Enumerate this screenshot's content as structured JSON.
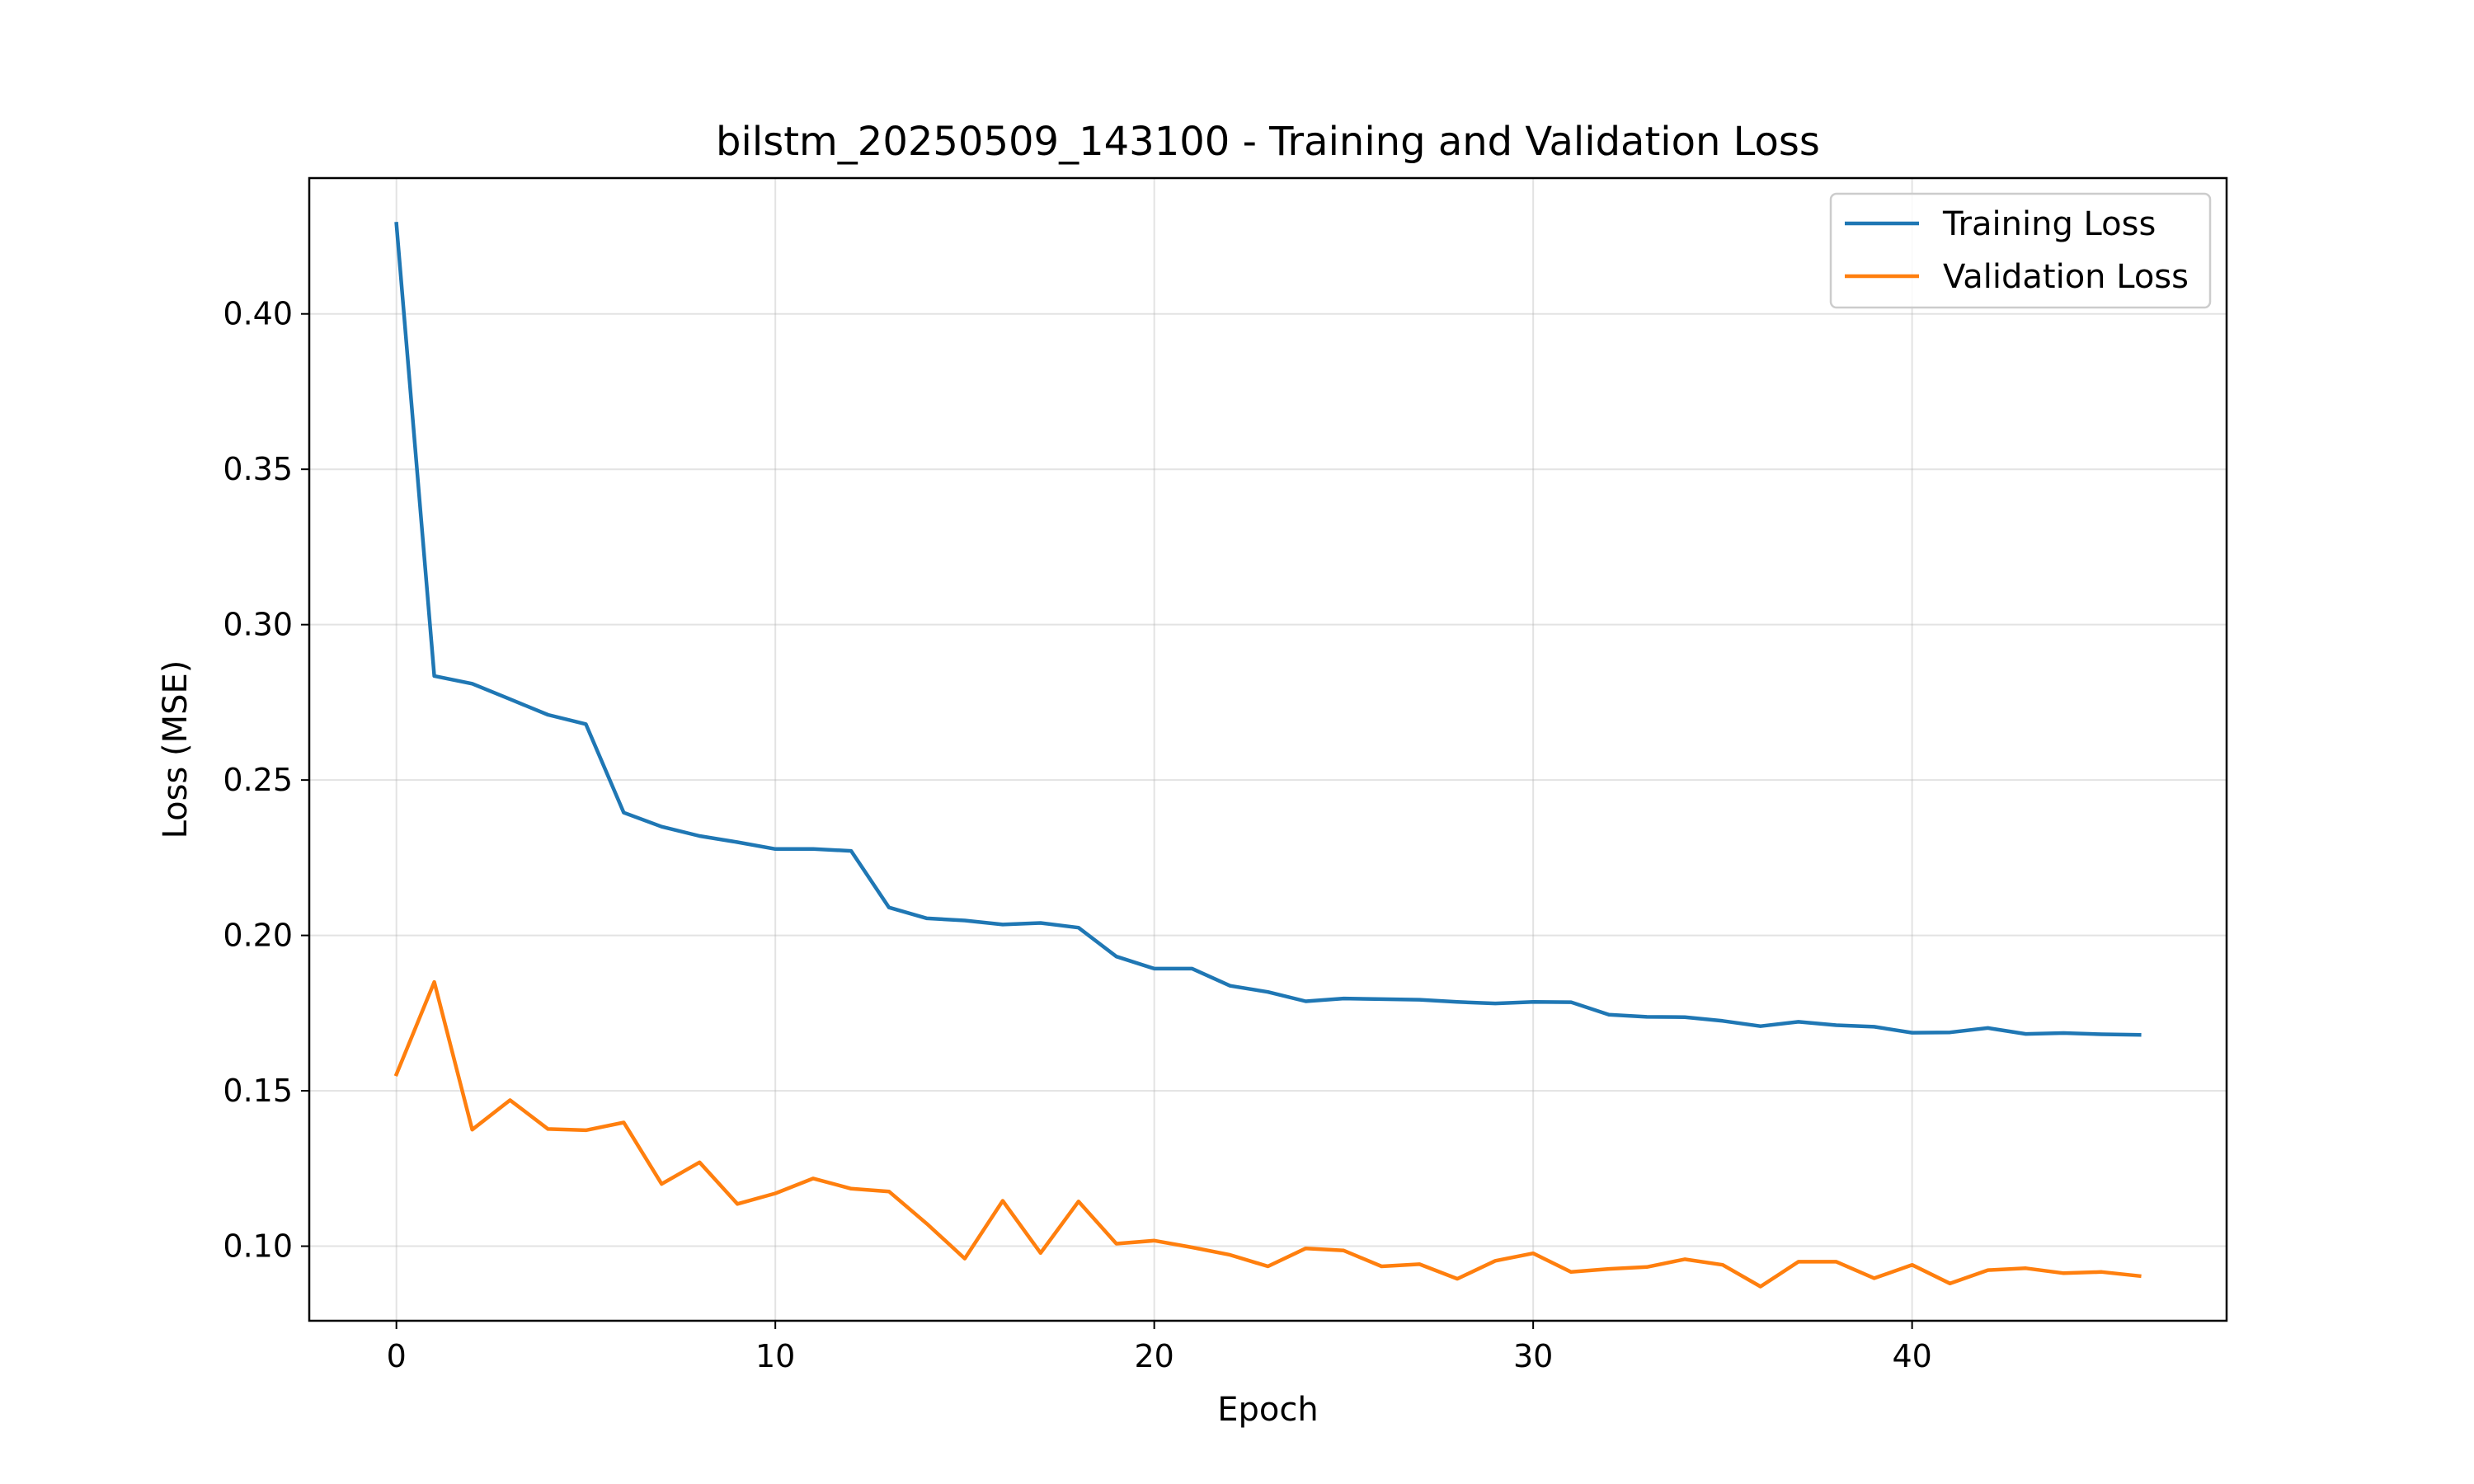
{
  "chart_data": {
    "type": "line",
    "title": "bilstm_20250509_143100 - Training and Validation Loss",
    "xlabel": "Epoch",
    "ylabel": "Loss (MSE)",
    "xlim": [
      -2.3,
      48.3
    ],
    "ylim": [
      0.076,
      0.4437
    ],
    "xticks": [
      0,
      10,
      20,
      30,
      40
    ],
    "yticks": [
      0.1,
      0.15,
      0.2,
      0.25,
      0.3,
      0.35,
      0.4
    ],
    "grid": true,
    "legend_position": "top-right",
    "x": [
      0,
      1,
      2,
      3,
      4,
      5,
      6,
      7,
      8,
      9,
      10,
      11,
      12,
      13,
      14,
      15,
      16,
      17,
      18,
      19,
      20,
      21,
      22,
      23,
      24,
      25,
      26,
      27,
      28,
      29,
      30,
      31,
      32,
      33,
      34,
      35,
      36,
      37,
      38,
      39,
      40,
      41,
      42,
      43,
      44,
      45,
      46
    ],
    "series": [
      {
        "name": "Training Loss",
        "color": "#1f77b4",
        "values": [
          0.429,
          0.2835,
          0.281,
          0.276,
          0.271,
          0.268,
          0.2395,
          0.235,
          0.232,
          0.23,
          0.2278,
          0.2278,
          0.2272,
          0.209,
          0.2055,
          0.2048,
          0.2035,
          0.204,
          0.2025,
          0.1932,
          0.1893,
          0.1893,
          0.1838,
          0.1818,
          0.1788,
          0.1797,
          0.1795,
          0.1793,
          0.1786,
          0.1781,
          0.1786,
          0.1785,
          0.1745,
          0.1738,
          0.1737,
          0.1725,
          0.1708,
          0.1722,
          0.1711,
          0.1706,
          0.1687,
          0.1688,
          0.1702,
          0.1683,
          0.1686,
          0.1682,
          0.168
        ]
      },
      {
        "name": "Validation Loss",
        "color": "#ff7f0e",
        "values": [
          0.1553,
          0.185,
          0.1375,
          0.147,
          0.1377,
          0.1373,
          0.1398,
          0.12,
          0.127,
          0.1136,
          0.117,
          0.1218,
          0.1185,
          0.1176,
          0.1072,
          0.096,
          0.1146,
          0.0978,
          0.1144,
          0.1008,
          0.1018,
          0.0996,
          0.0972,
          0.0935,
          0.0993,
          0.0986,
          0.0935,
          0.0942,
          0.0895,
          0.0953,
          0.0977,
          0.0917,
          0.0927,
          0.0933,
          0.0958,
          0.094,
          0.087,
          0.095,
          0.095,
          0.0897,
          0.094,
          0.088,
          0.0923,
          0.0929,
          0.0913,
          0.0917,
          0.0904
        ]
      }
    ]
  }
}
